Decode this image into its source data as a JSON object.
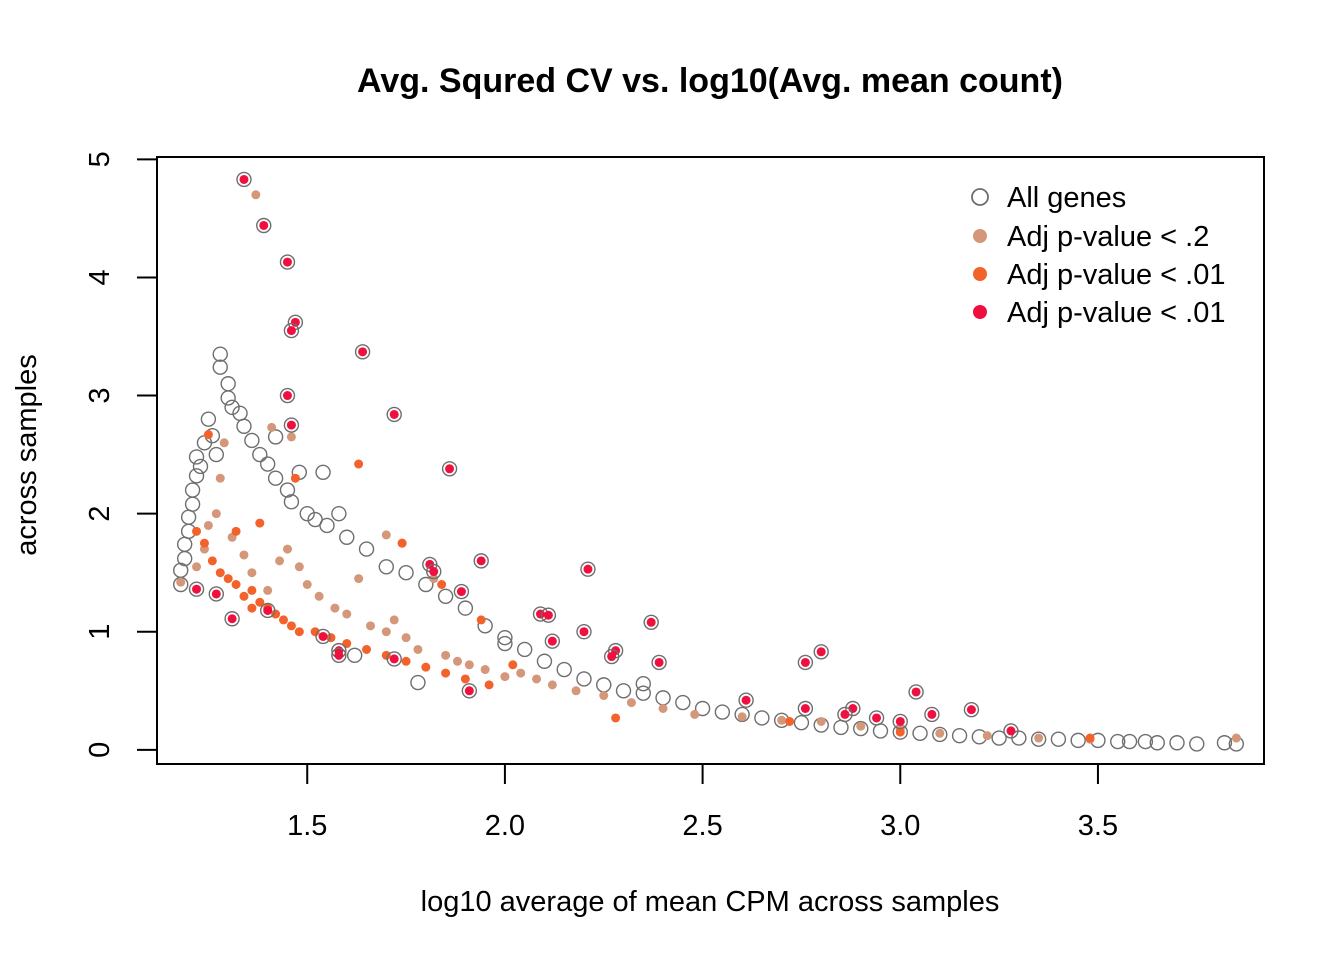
{
  "chart_data": {
    "type": "scatter",
    "title": "Avg. Squred CV vs. log10(Avg. mean count)",
    "xlabel": "log10 average of mean CPM across samples",
    "ylabel": "across samples",
    "xlim": [
      1.12,
      3.92
    ],
    "ylim": [
      -0.12,
      5.02
    ],
    "x_ticks": [
      1.5,
      2.0,
      2.5,
      3.0,
      3.5
    ],
    "x_tick_labels": [
      "1.5",
      "2.0",
      "2.5",
      "3.0",
      "3.5"
    ],
    "y_ticks": [
      0,
      1,
      2,
      3,
      4,
      5
    ],
    "y_tick_labels": [
      "0",
      "1",
      "2",
      "3",
      "4",
      "5"
    ],
    "grid": false,
    "legend_position": "top-right",
    "colors": {
      "all": "#6e6e6e",
      "p02": "#d4977a",
      "p001": "#f4622c",
      "p001b": "#f0103f"
    },
    "series": [
      {
        "name": "All genes",
        "marker": "open-circle",
        "color": "#6e6e6e",
        "points": [
          [
            1.18,
            1.4
          ],
          [
            1.18,
            1.52
          ],
          [
            1.19,
            1.62
          ],
          [
            1.19,
            1.74
          ],
          [
            1.2,
            1.85
          ],
          [
            1.2,
            1.97
          ],
          [
            1.21,
            2.08
          ],
          [
            1.21,
            2.2
          ],
          [
            1.22,
            2.32
          ],
          [
            1.22,
            2.48
          ],
          [
            1.23,
            2.4
          ],
          [
            1.24,
            2.6
          ],
          [
            1.25,
            2.8
          ],
          [
            1.26,
            2.66
          ],
          [
            1.27,
            2.5
          ],
          [
            1.28,
            3.24
          ],
          [
            1.28,
            3.35
          ],
          [
            1.3,
            3.1
          ],
          [
            1.3,
            2.98
          ],
          [
            1.31,
            2.9
          ],
          [
            1.33,
            2.85
          ],
          [
            1.34,
            2.74
          ],
          [
            1.36,
            2.62
          ],
          [
            1.38,
            2.5
          ],
          [
            1.4,
            2.42
          ],
          [
            1.42,
            2.3
          ],
          [
            1.45,
            2.2
          ],
          [
            1.48,
            2.35
          ],
          [
            1.54,
            2.35
          ],
          [
            1.5,
            2.0
          ],
          [
            1.55,
            1.9
          ],
          [
            1.6,
            1.8
          ],
          [
            1.65,
            1.7
          ],
          [
            1.7,
            1.55
          ],
          [
            1.75,
            1.5
          ],
          [
            1.8,
            1.4
          ],
          [
            1.85,
            1.3
          ],
          [
            1.9,
            1.2
          ],
          [
            1.95,
            1.05
          ],
          [
            2.0,
            0.95
          ],
          [
            2.05,
            0.85
          ],
          [
            2.1,
            0.75
          ],
          [
            2.15,
            0.68
          ],
          [
            2.2,
            0.6
          ],
          [
            2.25,
            0.55
          ],
          [
            2.3,
            0.5
          ],
          [
            2.35,
            0.48
          ],
          [
            2.4,
            0.44
          ],
          [
            2.45,
            0.4
          ],
          [
            2.5,
            0.35
          ],
          [
            2.55,
            0.32
          ],
          [
            2.6,
            0.3
          ],
          [
            2.65,
            0.27
          ],
          [
            2.7,
            0.25
          ],
          [
            2.75,
            0.23
          ],
          [
            2.8,
            0.21
          ],
          [
            2.85,
            0.19
          ],
          [
            2.9,
            0.18
          ],
          [
            2.95,
            0.16
          ],
          [
            3.0,
            0.15
          ],
          [
            3.05,
            0.14
          ],
          [
            3.1,
            0.13
          ],
          [
            3.15,
            0.12
          ],
          [
            3.2,
            0.11
          ],
          [
            3.25,
            0.1
          ],
          [
            3.3,
            0.1
          ],
          [
            3.35,
            0.09
          ],
          [
            3.4,
            0.09
          ],
          [
            3.45,
            0.08
          ],
          [
            3.5,
            0.08
          ],
          [
            3.55,
            0.07
          ],
          [
            3.58,
            0.07
          ],
          [
            3.62,
            0.07
          ],
          [
            3.65,
            0.06
          ],
          [
            3.7,
            0.06
          ],
          [
            3.75,
            0.05
          ],
          [
            3.82,
            0.06
          ],
          [
            3.85,
            0.05
          ],
          [
            2.35,
            0.56
          ],
          [
            2.0,
            0.9
          ],
          [
            1.78,
            0.57
          ],
          [
            1.62,
            0.8
          ],
          [
            1.52,
            1.95
          ],
          [
            1.58,
            2.0
          ],
          [
            1.46,
            2.1
          ],
          [
            1.42,
            2.65
          ]
        ]
      },
      {
        "name": "Adj p-value < .2",
        "marker": "filled-circle",
        "color": "#d4977a",
        "points": [
          [
            1.18,
            1.42
          ],
          [
            1.22,
            1.55
          ],
          [
            1.24,
            1.7
          ],
          [
            1.25,
            1.9
          ],
          [
            1.27,
            2.0
          ],
          [
            1.28,
            2.3
          ],
          [
            1.29,
            2.6
          ],
          [
            1.31,
            1.8
          ],
          [
            1.34,
            1.65
          ],
          [
            1.36,
            1.5
          ],
          [
            1.4,
            1.35
          ],
          [
            1.43,
            1.6
          ],
          [
            1.45,
            1.7
          ],
          [
            1.48,
            1.55
          ],
          [
            1.5,
            1.4
          ],
          [
            1.53,
            1.3
          ],
          [
            1.57,
            1.2
          ],
          [
            1.6,
            1.15
          ],
          [
            1.63,
            1.45
          ],
          [
            1.66,
            1.05
          ],
          [
            1.7,
            1.0
          ],
          [
            1.72,
            1.1
          ],
          [
            1.75,
            0.95
          ],
          [
            1.78,
            0.85
          ],
          [
            1.82,
            1.45
          ],
          [
            1.85,
            0.8
          ],
          [
            1.88,
            0.75
          ],
          [
            1.91,
            0.72
          ],
          [
            1.95,
            0.68
          ],
          [
            2.0,
            0.62
          ],
          [
            2.04,
            0.65
          ],
          [
            2.08,
            0.6
          ],
          [
            2.12,
            0.55
          ],
          [
            2.18,
            0.5
          ],
          [
            2.25,
            0.46
          ],
          [
            2.32,
            0.4
          ],
          [
            2.4,
            0.35
          ],
          [
            2.48,
            0.3
          ],
          [
            2.6,
            0.28
          ],
          [
            2.7,
            0.25
          ],
          [
            2.8,
            0.24
          ],
          [
            2.9,
            0.2
          ],
          [
            3.0,
            0.18
          ],
          [
            3.1,
            0.14
          ],
          [
            3.22,
            0.12
          ],
          [
            3.35,
            0.1
          ],
          [
            3.48,
            0.09
          ],
          [
            3.85,
            0.1
          ],
          [
            1.41,
            2.73
          ],
          [
            1.37,
            4.7
          ],
          [
            1.46,
            2.65
          ],
          [
            1.74,
            1.75
          ],
          [
            1.7,
            1.82
          ]
        ]
      },
      {
        "name": "Adj p-value < .01",
        "marker": "filled-circle",
        "color": "#f4622c",
        "points": [
          [
            1.22,
            1.85
          ],
          [
            1.24,
            1.75
          ],
          [
            1.26,
            1.6
          ],
          [
            1.28,
            1.5
          ],
          [
            1.3,
            1.45
          ],
          [
            1.32,
            1.4
          ],
          [
            1.34,
            1.3
          ],
          [
            1.36,
            1.35
          ],
          [
            1.38,
            1.25
          ],
          [
            1.4,
            1.2
          ],
          [
            1.42,
            1.15
          ],
          [
            1.44,
            1.1
          ],
          [
            1.46,
            1.05
          ],
          [
            1.48,
            1.0
          ],
          [
            1.52,
            1.0
          ],
          [
            1.56,
            0.95
          ],
          [
            1.6,
            0.9
          ],
          [
            1.65,
            0.85
          ],
          [
            1.7,
            0.8
          ],
          [
            1.75,
            0.75
          ],
          [
            1.8,
            0.7
          ],
          [
            1.85,
            0.65
          ],
          [
            1.9,
            0.6
          ],
          [
            1.96,
            0.55
          ],
          [
            2.02,
            0.72
          ],
          [
            1.63,
            2.42
          ],
          [
            1.38,
            1.92
          ],
          [
            1.47,
            2.3
          ],
          [
            1.32,
            1.85
          ],
          [
            1.74,
            1.75
          ],
          [
            2.28,
            0.27
          ],
          [
            2.72,
            0.24
          ],
          [
            3.0,
            0.15
          ],
          [
            3.48,
            0.1
          ],
          [
            1.84,
            1.4
          ],
          [
            1.94,
            1.1
          ],
          [
            1.25,
            2.67
          ],
          [
            1.36,
            1.2
          ]
        ]
      },
      {
        "name": "Adj p-value < .01",
        "marker": "filled-circle-ringed",
        "color": "#f0103f",
        "points": [
          [
            1.34,
            4.83
          ],
          [
            1.39,
            4.44
          ],
          [
            1.45,
            4.13
          ],
          [
            1.47,
            3.62
          ],
          [
            1.46,
            3.55
          ],
          [
            1.64,
            3.37
          ],
          [
            1.45,
            3.0
          ],
          [
            1.72,
            2.84
          ],
          [
            1.46,
            2.75
          ],
          [
            1.86,
            2.38
          ],
          [
            1.94,
            1.6
          ],
          [
            2.21,
            1.53
          ],
          [
            1.81,
            1.57
          ],
          [
            1.82,
            1.51
          ],
          [
            1.89,
            1.34
          ],
          [
            2.09,
            1.15
          ],
          [
            2.11,
            1.14
          ],
          [
            2.37,
            1.08
          ],
          [
            2.2,
            1.0
          ],
          [
            2.12,
            0.92
          ],
          [
            2.28,
            0.84
          ],
          [
            2.27,
            0.79
          ],
          [
            2.39,
            0.74
          ],
          [
            2.76,
            0.74
          ],
          [
            2.8,
            0.83
          ],
          [
            3.04,
            0.49
          ],
          [
            2.61,
            0.42
          ],
          [
            2.76,
            0.35
          ],
          [
            2.88,
            0.35
          ],
          [
            3.18,
            0.34
          ],
          [
            3.08,
            0.3
          ],
          [
            2.86,
            0.3
          ],
          [
            2.94,
            0.27
          ],
          [
            3.0,
            0.24
          ],
          [
            3.28,
            0.16
          ],
          [
            1.27,
            1.32
          ],
          [
            1.22,
            1.36
          ],
          [
            1.31,
            1.11
          ],
          [
            1.4,
            1.18
          ],
          [
            1.54,
            0.96
          ],
          [
            1.58,
            0.84
          ],
          [
            1.58,
            0.8
          ],
          [
            1.72,
            0.77
          ],
          [
            1.91,
            0.5
          ]
        ]
      }
    ]
  }
}
